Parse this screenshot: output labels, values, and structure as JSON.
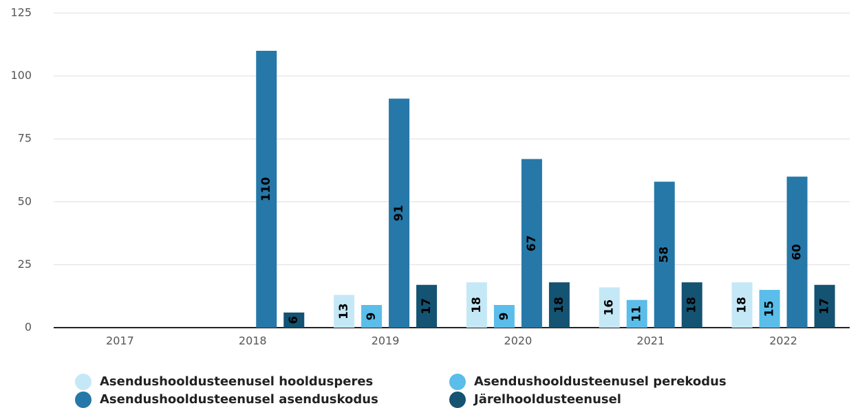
{
  "chart_data": {
    "type": "bar",
    "categories": [
      "2017",
      "2018",
      "2019",
      "2020",
      "2021",
      "2022"
    ],
    "series": [
      {
        "name": "Asendushooldusteenusel hooldusperes",
        "color": "#c5e8f7",
        "values": [
          null,
          null,
          13,
          18,
          16,
          18
        ]
      },
      {
        "name": "Asendushooldusteenusel perekodus",
        "color": "#5bbde9",
        "values": [
          null,
          null,
          9,
          9,
          11,
          15
        ]
      },
      {
        "name": "Asendushooldusteenusel asenduskodus",
        "color": "#2678a8",
        "values": [
          null,
          110,
          91,
          67,
          58,
          60
        ]
      },
      {
        "name": "Järelhooldusteenusel",
        "color": "#145372",
        "values": [
          null,
          6,
          17,
          18,
          18,
          17
        ]
      }
    ],
    "ylim": [
      0,
      125
    ],
    "yticks": [
      0,
      25,
      50,
      75,
      100,
      125
    ],
    "grid": true
  }
}
